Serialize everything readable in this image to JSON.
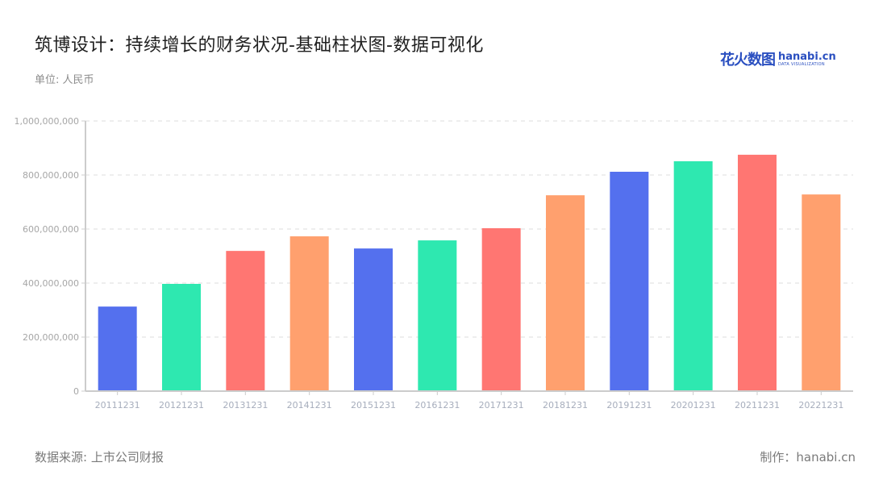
{
  "header": {
    "title": "筑博设计：持续增长的财务状况-基础柱状图-数据可视化",
    "unit": "单位: 人民币"
  },
  "logo": {
    "cn": "花火数图",
    "en": "hanabi.cn",
    "sub": "DATA VISUALIZATION",
    "color": "#2a4fc0"
  },
  "footer": {
    "source": "数据来源: 上市公司财报",
    "maker": "制作：hanabi.cn"
  },
  "chart_data": {
    "type": "bar",
    "title": "筑博设计：持续增长的财务状况-基础柱状图-数据可视化",
    "xlabel": "",
    "ylabel": "单位: 人民币",
    "ylim": [
      0,
      1000000000
    ],
    "yticks": [
      0,
      200000000,
      400000000,
      600000000,
      800000000,
      1000000000
    ],
    "ytick_labels": [
      "0",
      "200,000,000",
      "400,000,000",
      "600,000,000",
      "800,000,000",
      "1,000,000,000"
    ],
    "grid": "horizontal dashed",
    "legend": "none",
    "categories": [
      "20111231",
      "20121231",
      "20131231",
      "20141231",
      "20151231",
      "20161231",
      "20171231",
      "20181231",
      "20191231",
      "20201231",
      "20211231",
      "20221231"
    ],
    "values": [
      313000000,
      397000000,
      519000000,
      573000000,
      528000000,
      558000000,
      603000000,
      725000000,
      812000000,
      851000000,
      875000000,
      728000000
    ],
    "colors": [
      "#5470ee",
      "#2ee8b0",
      "#ff7672",
      "#ffa06e",
      "#5470ee",
      "#2ee8b0",
      "#ff7672",
      "#ffa06e",
      "#5470ee",
      "#2ee8b0",
      "#ff7672",
      "#ffa06e"
    ]
  }
}
